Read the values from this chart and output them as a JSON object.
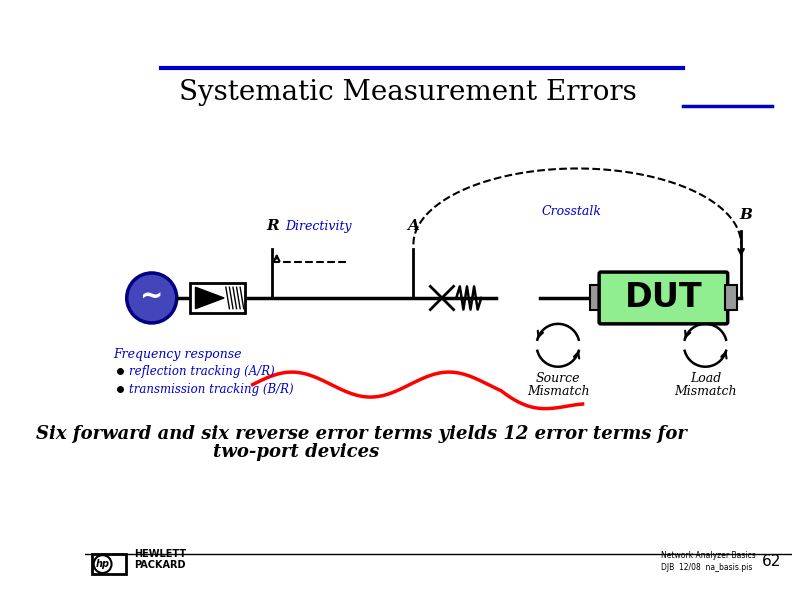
{
  "title": "Systematic Measurement Errors",
  "title_color": "#000000",
  "title_fontsize": 20,
  "background_color": "#ffffff",
  "blue_accent": "#0000cc",
  "dut_fill": "#90ee90",
  "dut_text": "DUT",
  "label_R": "R",
  "label_A": "A",
  "label_B": "B",
  "label_directivity": "Directivity",
  "label_crosstalk": "Crosstalk",
  "label_freq": "Frequency response",
  "bullet1": "reflection tracking (A/R)",
  "bullet2": "transmission tracking (B/R)",
  "label_source": "Source",
  "label_mismatch1": "Mismatch",
  "label_load": "Load",
  "label_mismatch2": "Mismatch",
  "bottom_text1": "Six forward and six reverse error terms yields 12 error terms for",
  "bottom_text2": "two-port devices",
  "footer_left": "Network Analyzer Basics\nDJB  12/08  na_basis.pis",
  "footer_page": "62",
  "footer_brand": "HEWLETT\nPACKARD"
}
